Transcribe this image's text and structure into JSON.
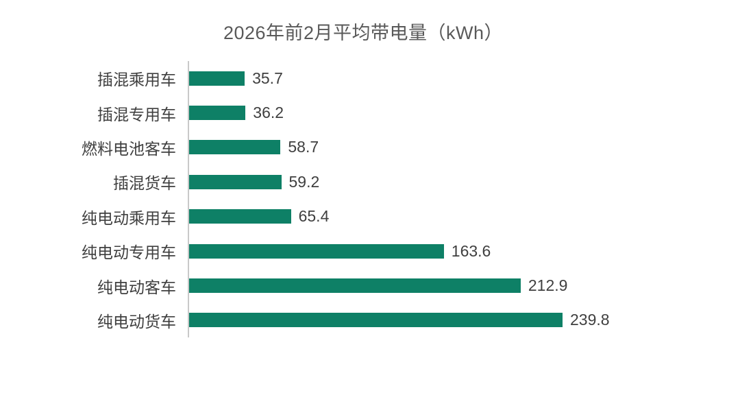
{
  "title": "2026年前2月平均带电量（kWh）",
  "colors": {
    "bar": "#0e8066",
    "axis_line": "#c9c9c9",
    "title_text": "#595959",
    "label_text": "#3f3f3f",
    "background": "#ffffff"
  },
  "chart_data": {
    "type": "bar",
    "orientation": "horizontal",
    "title": "2026年前2月平均带电量（kWh）",
    "xlabel": "",
    "ylabel": "",
    "categories": [
      "插混乘用车",
      "插混专用车",
      "燃料电池客车",
      "插混货车",
      "纯电动乘用车",
      "纯电动专用车",
      "纯电动客车",
      "纯电动货车"
    ],
    "values": [
      35.7,
      36.2,
      58.7,
      59.2,
      65.4,
      163.6,
      212.9,
      239.8
    ],
    "value_labels": [
      "35.7",
      "36.2",
      "58.7",
      "59.2",
      "65.4",
      "163.6",
      "212.9",
      "239.8"
    ],
    "bar_color": "#0e8066",
    "xlim": [
      0,
      260
    ],
    "grid": false,
    "legend": "none",
    "value_labels_shown": true
  }
}
